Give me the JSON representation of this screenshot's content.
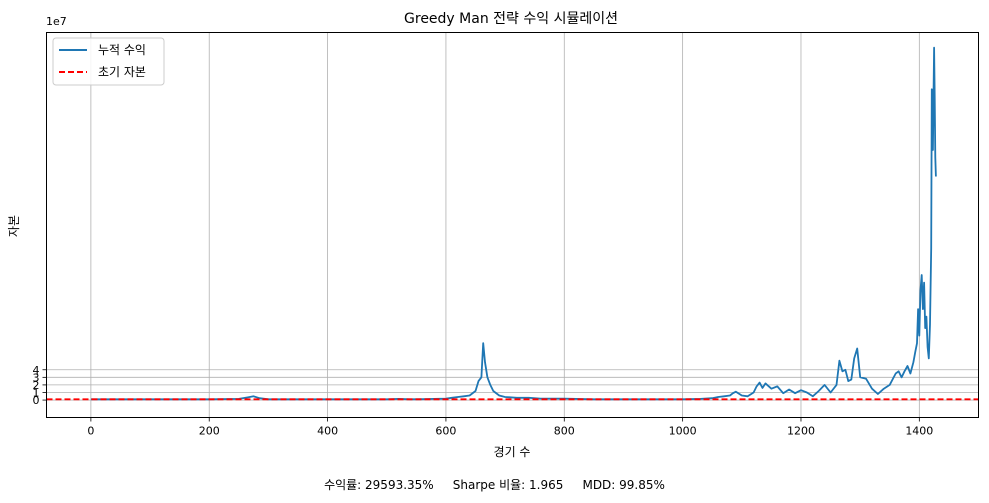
{
  "chart_data": {
    "type": "line",
    "title": "Greedy Man 전략 수익 시뮬레이션",
    "xlabel": "경기 수",
    "ylabel": "자본",
    "y_scale_label": "1e7",
    "xlim": [
      -75,
      1500
    ],
    "ylim": [
      -2.3,
      48.5
    ],
    "x_ticks": [
      0,
      200,
      400,
      600,
      800,
      1000,
      1200,
      1400
    ],
    "y_ticks": [
      0,
      1,
      2,
      3,
      4
    ],
    "grid": true,
    "legend": "top-left",
    "series": [
      {
        "name": "누적 수익",
        "style": "solid",
        "color": "#1f77b4",
        "x": [
          0,
          50,
          100,
          150,
          200,
          250,
          265,
          275,
          285,
          300,
          350,
          400,
          450,
          500,
          520,
          540,
          560,
          580,
          600,
          610,
          620,
          630,
          640,
          650,
          655,
          660,
          663,
          666,
          670,
          675,
          680,
          690,
          700,
          720,
          740,
          760,
          800,
          850,
          900,
          950,
          1000,
          1030,
          1050,
          1060,
          1070,
          1080,
          1085,
          1090,
          1100,
          1110,
          1120,
          1125,
          1130,
          1135,
          1140,
          1150,
          1160,
          1170,
          1180,
          1190,
          1200,
          1210,
          1220,
          1230,
          1240,
          1250,
          1260,
          1265,
          1270,
          1275,
          1280,
          1285,
          1290,
          1295,
          1300,
          1310,
          1320,
          1330,
          1340,
          1350,
          1360,
          1365,
          1370,
          1375,
          1380,
          1385,
          1390,
          1393,
          1396,
          1398,
          1400,
          1402,
          1404,
          1406,
          1408,
          1410,
          1412,
          1414,
          1416,
          1418,
          1420,
          1421,
          1422,
          1423,
          1424,
          1425,
          1426,
          1427,
          1428
        ],
        "y": [
          0.1,
          0.1,
          0.1,
          0.1,
          0.1,
          0.15,
          0.35,
          0.5,
          0.25,
          0.1,
          0.1,
          0.1,
          0.1,
          0.1,
          0.15,
          0.1,
          0.12,
          0.15,
          0.18,
          0.3,
          0.4,
          0.5,
          0.6,
          1.2,
          2.5,
          3.0,
          7.5,
          5.0,
          3.0,
          2.0,
          1.2,
          0.6,
          0.4,
          0.3,
          0.3,
          0.2,
          0.2,
          0.1,
          0.1,
          0.1,
          0.1,
          0.15,
          0.25,
          0.4,
          0.5,
          0.6,
          0.9,
          1.1,
          0.6,
          0.5,
          1.0,
          1.8,
          2.3,
          1.6,
          2.2,
          1.5,
          1.8,
          0.9,
          1.4,
          0.9,
          1.3,
          1.0,
          0.5,
          1.2,
          2.0,
          1.0,
          2.0,
          5.2,
          3.8,
          4.0,
          2.5,
          2.7,
          5.5,
          6.8,
          3.0,
          2.8,
          1.5,
          0.8,
          1.5,
          2.0,
          3.5,
          3.8,
          3.0,
          3.8,
          4.5,
          3.5,
          5.0,
          6.3,
          7.5,
          12.0,
          8.5,
          14.5,
          16.5,
          12.0,
          15.5,
          9.5,
          11.0,
          7.0,
          5.5,
          10.0,
          20.0,
          41.0,
          37.0,
          33.0,
          40.0,
          46.5,
          40.0,
          32.0,
          29.5
        ],
        "units_note": "values in units of 1e7"
      },
      {
        "name": "초기 자본",
        "style": "dashed",
        "color": "#ff0000",
        "y_constant": 0.1
      }
    ]
  },
  "footer": {
    "stats_line": "수익률: 29593.35%     Sharpe 비율: 1.965     MDD: 99.85%"
  }
}
